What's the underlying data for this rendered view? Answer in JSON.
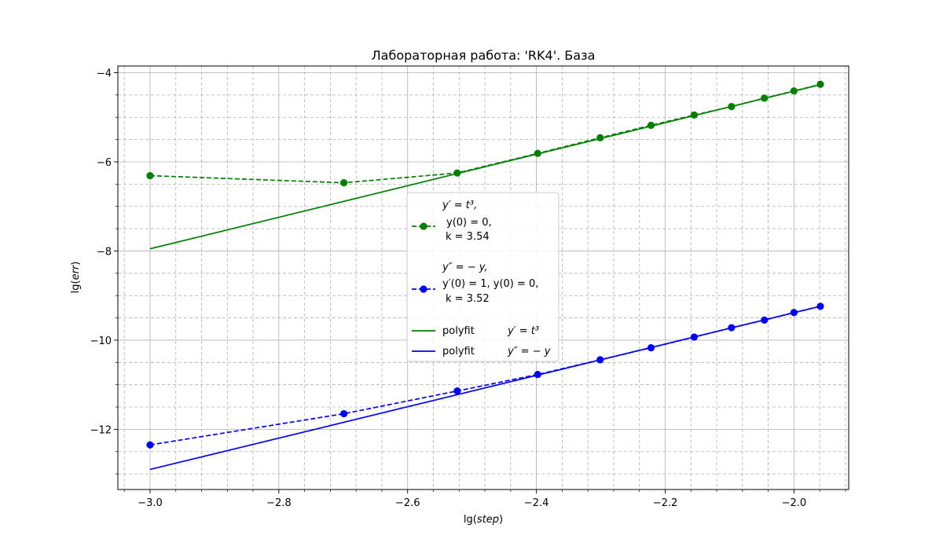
{
  "chart_data": {
    "type": "line",
    "title": "Лабораторная работа: 'RK4'. База",
    "xlabel": {
      "prefix": "lg(",
      "var": "step",
      "suffix": ")"
    },
    "ylabel": {
      "prefix": "lg(",
      "var": "err",
      "suffix": ")"
    },
    "xlim": [
      -3.05,
      -1.915
    ],
    "ylim": [
      -13.35,
      -3.85
    ],
    "xticks": [
      -3.0,
      -2.8,
      -2.6,
      -2.4,
      -2.2,
      -2.0
    ],
    "xtick_labels": [
      "−3.0",
      "−2.8",
      "−2.6",
      "−2.4",
      "−2.2",
      "−2.0"
    ],
    "yticks": [
      -12,
      -10,
      -8,
      -6,
      -4
    ],
    "ytick_labels": [
      "−12",
      "−10",
      "−8",
      "−6",
      "−4"
    ],
    "xminor": [
      -3.04,
      -2.96,
      -2.92,
      -2.88,
      -2.84,
      -2.76,
      -2.72,
      -2.68,
      -2.64,
      -2.56,
      -2.52,
      -2.48,
      -2.44,
      -2.36,
      -2.32,
      -2.28,
      -2.24,
      -2.16,
      -2.12,
      -2.08,
      -2.04,
      -1.96,
      -1.92
    ],
    "yminor": [
      -13.0,
      -12.5,
      -11.5,
      -11.0,
      -10.5,
      -9.5,
      -9.0,
      -8.5,
      -7.5,
      -7.0,
      -6.5,
      -5.5,
      -5.0,
      -4.5
    ],
    "grid": "major solid, minor dashed",
    "series": [
      {
        "key": "green",
        "color": "#008000",
        "x": [
          -3.0,
          -2.699,
          -2.523,
          -2.398,
          -2.301,
          -2.222,
          -2.155,
          -2.097,
          -2.046,
          -2.0,
          -1.959
        ],
        "y": [
          -6.31,
          -6.47,
          -6.25,
          -5.81,
          -5.46,
          -5.18,
          -4.95,
          -4.76,
          -4.57,
          -4.41,
          -4.26
        ]
      },
      {
        "key": "blue",
        "color": "#0000ff",
        "x": [
          -3.0,
          -2.699,
          -2.523,
          -2.398,
          -2.301,
          -2.222,
          -2.155,
          -2.097,
          -2.046,
          -2.0,
          -1.959
        ],
        "y": [
          -12.35,
          -11.65,
          -11.14,
          -10.77,
          -10.44,
          -10.17,
          -9.93,
          -9.72,
          -9.55,
          -9.38,
          -9.24
        ]
      }
    ],
    "fits": [
      {
        "key": "green-fit",
        "color": "#008000",
        "x": [
          -3.0,
          -1.959
        ],
        "y": [
          -7.95,
          -4.27
        ]
      },
      {
        "key": "blue-fit",
        "color": "#0000ff",
        "x": [
          -3.0,
          -1.959
        ],
        "y": [
          -12.9,
          -9.24
        ]
      }
    ],
    "legend": {
      "placement": "center",
      "entries": [
        {
          "key": "green",
          "lines": [
            "y′ = t³,",
            "y(0) = 0,",
            "k = 3.54"
          ]
        },
        {
          "key": "blue",
          "lines": [
            "y″ = − y,",
            "y′(0) = 1, y(0) = 0,",
            "k = 3.52"
          ]
        },
        {
          "key": "green-fit",
          "label": "polyfit",
          "eq": "y′ = t³"
        },
        {
          "key": "blue-fit",
          "label": "polyfit",
          "eq": "y″ = − y"
        }
      ]
    }
  }
}
